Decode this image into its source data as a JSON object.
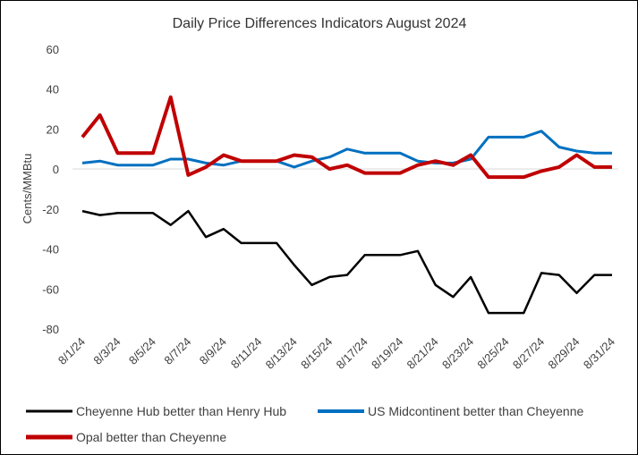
{
  "chart_data": {
    "type": "line",
    "title": "Daily Price Differences Indicators August 2024",
    "xlabel": "",
    "ylabel": "Cents/MMBtu",
    "ylim": [
      -80,
      60
    ],
    "yticks": [
      60,
      40,
      20,
      0,
      -20,
      -40,
      -60,
      -80
    ],
    "grid": false,
    "legend_position": "bottom",
    "x": [
      "8/1/24",
      "8/2/24",
      "8/3/24",
      "8/4/24",
      "8/5/24",
      "8/6/24",
      "8/7/24",
      "8/8/24",
      "8/9/24",
      "8/10/24",
      "8/11/24",
      "8/12/24",
      "8/13/24",
      "8/14/24",
      "8/15/24",
      "8/16/24",
      "8/17/24",
      "8/18/24",
      "8/19/24",
      "8/20/24",
      "8/21/24",
      "8/22/24",
      "8/23/24",
      "8/24/24",
      "8/25/24",
      "8/26/24",
      "8/27/24",
      "8/28/24",
      "8/29/24",
      "8/30/24",
      "8/31/24"
    ],
    "xtick_labels": [
      "8/1/24",
      "8/3/24",
      "8/5/24",
      "8/7/24",
      "8/9/24",
      "8/11/24",
      "8/13/24",
      "8/15/24",
      "8/17/24",
      "8/19/24",
      "8/21/24",
      "8/23/24",
      "8/25/24",
      "8/27/24",
      "8/29/24",
      "8/31/24"
    ],
    "series": [
      {
        "name": "Cheyenne Hub better than Henry Hub",
        "color": "#000000",
        "values": [
          -21,
          -23,
          -22,
          -22,
          -22,
          -28,
          -21,
          -34,
          -30,
          -37,
          -37,
          -37,
          -48,
          -58,
          -54,
          -53,
          -43,
          -43,
          -43,
          -41,
          -58,
          -64,
          -54,
          -72,
          -72,
          -72,
          -52,
          -53,
          -62,
          -53,
          -53
        ]
      },
      {
        "name": "US Midcontinent better than Cheyenne",
        "color": "#0070c0",
        "values": [
          3,
          4,
          2,
          2,
          2,
          5,
          5,
          3,
          2,
          4,
          4,
          4,
          1,
          4,
          6,
          10,
          8,
          8,
          8,
          4,
          3,
          3,
          5,
          16,
          16,
          16,
          19,
          11,
          9,
          8,
          8
        ]
      },
      {
        "name": "Opal better than Cheyenne",
        "color": "#c00000",
        "values": [
          16,
          27,
          8,
          8,
          8,
          36,
          -3,
          1,
          7,
          4,
          4,
          4,
          7,
          6,
          0,
          2,
          -2,
          -2,
          -2,
          2,
          4,
          2,
          7,
          -4,
          -4,
          -4,
          -1,
          1,
          7,
          1,
          1
        ]
      }
    ]
  }
}
